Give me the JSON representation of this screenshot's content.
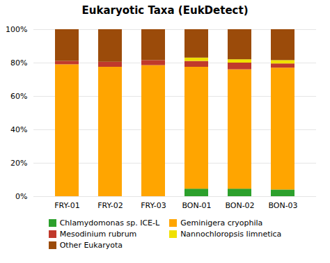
{
  "chart_data": {
    "type": "bar",
    "title": "Eukaryotic Taxa (EukDetect)",
    "categories": [
      "FRY-01",
      "FRY-02",
      "FRY-03",
      "BON-01",
      "BON-02",
      "BON-03"
    ],
    "series": [
      {
        "name": "Chlamydomonas sp. ICE-L",
        "color": "#2ca02c",
        "values": [
          0.0,
          0.0,
          0.0,
          4.5,
          4.5,
          4.0
        ]
      },
      {
        "name": "Geminigera cryophila",
        "color": "#FFA500",
        "values": [
          79.0,
          77.5,
          78.5,
          73.0,
          71.5,
          73.0
        ]
      },
      {
        "name": "Mesodinium rubrum",
        "color": "#c0392b",
        "values": [
          2.0,
          3.0,
          3.0,
          3.5,
          4.0,
          2.5
        ]
      },
      {
        "name": "Nannochloropsis limnetica",
        "color": "#f0e000",
        "values": [
          0.0,
          0.0,
          0.0,
          2.0,
          2.0,
          2.0
        ]
      },
      {
        "name": "Other Eukaryota",
        "color": "#9B4B0A",
        "values": [
          19.0,
          19.5,
          18.5,
          17.0,
          18.0,
          18.5
        ]
      }
    ],
    "stacked": true,
    "ylim": [
      0,
      100
    ],
    "yticks": [
      {
        "value": 0,
        "label": "0%"
      },
      {
        "value": 20,
        "label": "20%"
      },
      {
        "value": 40,
        "label": "40%"
      },
      {
        "value": 60,
        "label": "60%"
      },
      {
        "value": 80,
        "label": "80%"
      },
      {
        "value": 100,
        "label": "100%"
      }
    ],
    "grid": true,
    "legend": "bottom"
  }
}
